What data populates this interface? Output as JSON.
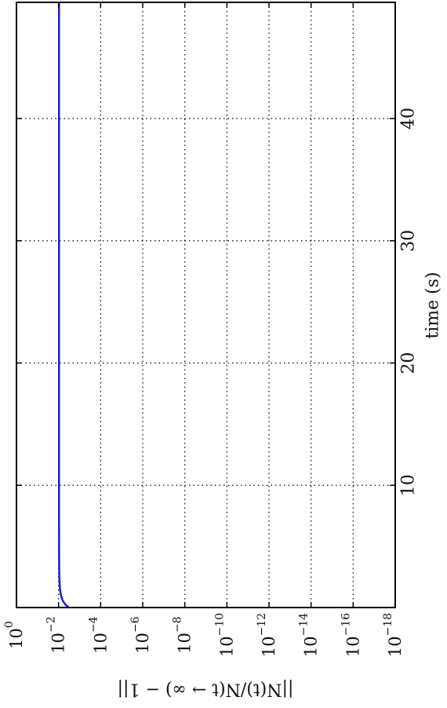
{
  "chart_data": {
    "type": "line",
    "orientation": "rotated-90-clockwise",
    "xlabel": "time (s)",
    "ylabel": "||N(t)/N(t → ∞) − 1||",
    "xlim": [
      0,
      49.5
    ],
    "ylim": [
      1e-18,
      1
    ],
    "y_scale": "log",
    "grid": true,
    "grid_style": "dotted",
    "x_ticks": [
      10,
      20,
      30,
      40
    ],
    "y_ticks": [
      {
        "value": 1,
        "base": "10",
        "exp": "0"
      },
      {
        "value": 0.01,
        "base": "10",
        "exp": "−2"
      },
      {
        "value": 0.0001,
        "base": "10",
        "exp": "−4"
      },
      {
        "value": 1e-06,
        "base": "10",
        "exp": "−6"
      },
      {
        "value": 1e-08,
        "base": "10",
        "exp": "−8"
      },
      {
        "value": 1e-10,
        "base": "10",
        "exp": "−10"
      },
      {
        "value": 1e-12,
        "base": "10",
        "exp": "−12"
      },
      {
        "value": 1e-14,
        "base": "10",
        "exp": "−14"
      },
      {
        "value": 1e-16,
        "base": "10",
        "exp": "−16"
      },
      {
        "value": 1e-18,
        "base": "10",
        "exp": "−18"
      }
    ],
    "series": [
      {
        "color": "#1c1cd8",
        "x": [
          0,
          0.1,
          0.2,
          0.4,
          0.6,
          1.0,
          1.5,
          2.5,
          4,
          8,
          15,
          25,
          35,
          49.5
        ],
        "y": [
          0.0032,
          0.0038,
          0.0045,
          0.0055,
          0.0065,
          0.0077,
          0.0086,
          0.0092,
          0.0094,
          0.0095,
          0.0095,
          0.0095,
          0.0095,
          0.0095
        ]
      }
    ]
  }
}
